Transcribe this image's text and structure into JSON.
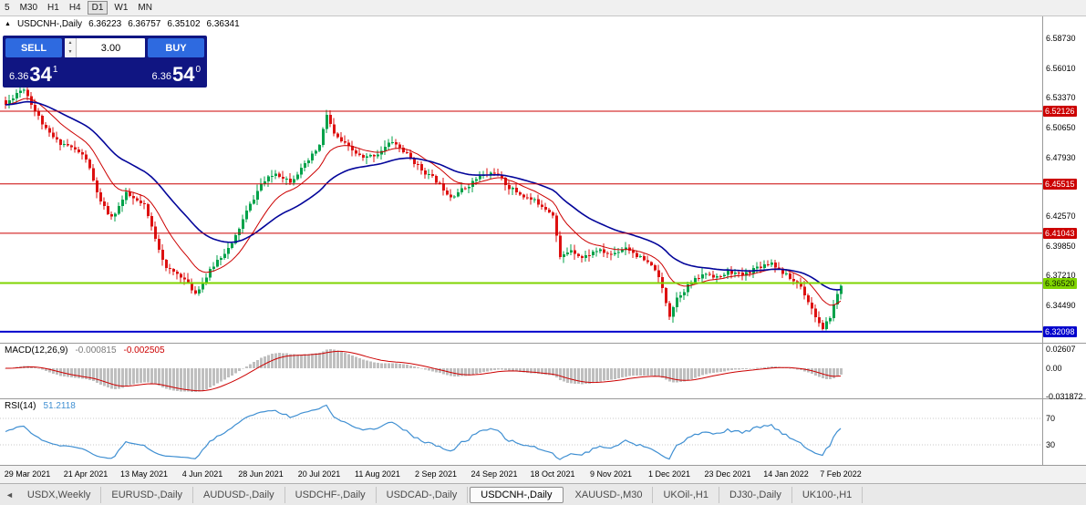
{
  "toolbar": {
    "timeframes": [
      "5",
      "M30",
      "H1",
      "H4",
      "D1",
      "W1",
      "MN"
    ],
    "active": "D1"
  },
  "chart_header": {
    "expand_icon": "▲",
    "symbol": "USDCNH-,Daily",
    "open": "6.36223",
    "high": "6.36757",
    "low": "6.35102",
    "close": "6.36341"
  },
  "trade_panel": {
    "sell_label": "SELL",
    "buy_label": "BUY",
    "volume": "3.00",
    "bid": {
      "small": "6.36",
      "big": "34",
      "sup": "1"
    },
    "ask": {
      "small": "6.36",
      "big": "54",
      "sup": "0"
    }
  },
  "indicators": {
    "macd": {
      "title": "MACD(12,26,9)",
      "value_main": "-0.000815",
      "value_signal": "-0.002505",
      "axis_labels": [
        {
          "text": "0.02607",
          "value": 0.02607
        },
        {
          "text": "0.00",
          "value": 0
        },
        {
          "text": "-0.031872",
          "value": -0.031872
        }
      ]
    },
    "rsi": {
      "title": "RSI(14)",
      "value": "51.2118",
      "levels": [
        70,
        30
      ]
    }
  },
  "price_axis": {
    "labels": [
      {
        "text": "6.58730",
        "price": 6.5873
      },
      {
        "text": "6.56010",
        "price": 6.5601
      },
      {
        "text": "6.53370",
        "price": 6.5337
      },
      {
        "text": "6.50650",
        "price": 6.5065
      },
      {
        "text": "6.47930",
        "price": 6.4793
      },
      {
        "text": "6.42570",
        "price": 6.4257
      },
      {
        "text": "6.39850",
        "price": 6.3985
      },
      {
        "text": "6.37210",
        "price": 6.3721
      },
      {
        "text": "6.34490",
        "price": 6.3449
      }
    ],
    "level_badges": [
      {
        "text": "6.52126",
        "price": 6.52126,
        "color": "#cc0000",
        "text_color": "#ffffff"
      },
      {
        "text": "6.45515",
        "price": 6.45515,
        "color": "#cc0000",
        "text_color": "#ffffff"
      },
      {
        "text": "6.41043",
        "price": 6.41043,
        "color": "#cc0000",
        "text_color": "#ffffff"
      },
      {
        "text": "6.36520",
        "price": 6.3652,
        "color": "#7fd400",
        "text_color": "#102000"
      },
      {
        "text": "6.32098",
        "price": 6.32098,
        "color": "#0000cd",
        "text_color": "#ffffff"
      }
    ]
  },
  "hlines": [
    {
      "price": 6.52126,
      "color": "#cc0000",
      "width": 1
    },
    {
      "price": 6.45515,
      "color": "#cc0000",
      "width": 1
    },
    {
      "price": 6.41043,
      "color": "#cc0000",
      "width": 1
    },
    {
      "price": 6.3652,
      "color": "#7fd400",
      "width": 2
    },
    {
      "price": 6.32098,
      "color": "#0000cd",
      "width": 2
    }
  ],
  "date_axis": {
    "dates": [
      "29 Mar 2021",
      "21 Apr 2021",
      "13 May 2021",
      "4 Jun 2021",
      "28 Jun 2021",
      "20 Jul 2021",
      "11 Aug 2021",
      "2 Sep 2021",
      "24 Sep 2021",
      "18 Oct 2021",
      "9 Nov 2021",
      "1 Dec 2021",
      "23 Dec 2021",
      "14 Jan 2022",
      "7 Feb 2022"
    ]
  },
  "tabs": {
    "scroll_left_icon": "◄",
    "items": [
      {
        "label": "USDX,Weekly",
        "active": false
      },
      {
        "label": "EURUSD-,Daily",
        "active": false
      },
      {
        "label": "AUDUSD-,Daily",
        "active": false
      },
      {
        "label": "USDCHF-,Daily",
        "active": false
      },
      {
        "label": "USDCAD-,Daily",
        "active": false
      },
      {
        "label": "USDCNH-,Daily",
        "active": true
      },
      {
        "label": "XAUUSD-,M30",
        "active": false
      },
      {
        "label": "UKOil-,H1",
        "active": false
      },
      {
        "label": "DJ30-,Daily",
        "active": false
      },
      {
        "label": "UK100-,H1",
        "active": false
      }
    ]
  },
  "chart_data": {
    "type": "candlestick",
    "symbol": "USDCNH-",
    "timeframe": "Daily",
    "current_ohlc": {
      "open": 6.36223,
      "high": 6.36757,
      "low": 6.35102,
      "close": 6.36341
    },
    "visible_price_range": {
      "top": 6.6073,
      "bottom": 6.311
    },
    "candle_count": 230,
    "render_seed": 11,
    "price_anchors": [
      [
        0,
        6.527
      ],
      [
        3,
        6.538
      ],
      [
        5,
        6.542
      ],
      [
        8,
        6.522
      ],
      [
        11,
        6.504
      ],
      [
        14,
        6.494
      ],
      [
        17,
        6.49
      ],
      [
        20,
        6.484
      ],
      [
        22,
        6.478
      ],
      [
        26,
        6.438
      ],
      [
        29,
        6.424
      ],
      [
        33,
        6.446
      ],
      [
        38,
        6.435
      ],
      [
        44,
        6.378
      ],
      [
        48,
        6.372
      ],
      [
        52,
        6.356
      ],
      [
        54,
        6.366
      ],
      [
        58,
        6.386
      ],
      [
        62,
        6.4
      ],
      [
        66,
        6.43
      ],
      [
        70,
        6.455
      ],
      [
        74,
        6.465
      ],
      [
        78,
        6.458
      ],
      [
        82,
        6.472
      ],
      [
        86,
        6.49
      ],
      [
        88,
        6.518
      ],
      [
        90,
        6.5
      ],
      [
        94,
        6.488
      ],
      [
        98,
        6.478
      ],
      [
        102,
        6.483
      ],
      [
        106,
        6.494
      ],
      [
        110,
        6.482
      ],
      [
        114,
        6.468
      ],
      [
        118,
        6.458
      ],
      [
        122,
        6.444
      ],
      [
        126,
        6.452
      ],
      [
        130,
        6.462
      ],
      [
        134,
        6.466
      ],
      [
        138,
        6.452
      ],
      [
        142,
        6.444
      ],
      [
        146,
        6.438
      ],
      [
        150,
        6.428
      ],
      [
        152,
        6.388
      ],
      [
        155,
        6.396
      ],
      [
        158,
        6.388
      ],
      [
        162,
        6.395
      ],
      [
        166,
        6.391
      ],
      [
        170,
        6.398
      ],
      [
        174,
        6.388
      ],
      [
        178,
        6.378
      ],
      [
        180,
        6.36
      ],
      [
        182,
        6.336
      ],
      [
        184,
        6.352
      ],
      [
        188,
        6.366
      ],
      [
        192,
        6.374
      ],
      [
        196,
        6.37
      ],
      [
        198,
        6.376
      ],
      [
        202,
        6.372
      ],
      [
        206,
        6.38
      ],
      [
        210,
        6.384
      ],
      [
        214,
        6.372
      ],
      [
        218,
        6.362
      ],
      [
        221,
        6.342
      ],
      [
        224,
        6.322
      ],
      [
        226,
        6.335
      ],
      [
        228,
        6.355
      ],
      [
        229,
        6.363
      ]
    ],
    "moving_averages": [
      {
        "period": 13,
        "color": "#cc0000",
        "width": 1
      },
      {
        "period": 34,
        "color": "#03059a",
        "width": 1.6
      }
    ],
    "macd": {
      "fast": 12,
      "slow": 26,
      "signal": 9,
      "axis_max": 0.0285,
      "axis_min": -0.0335,
      "main_value": -0.000815,
      "signal_value": -0.002505
    },
    "rsi": {
      "period": 14,
      "value": 51.2118
    },
    "support_resistance_levels": [
      6.52126,
      6.45515,
      6.41043,
      6.3652,
      6.32098
    ]
  }
}
